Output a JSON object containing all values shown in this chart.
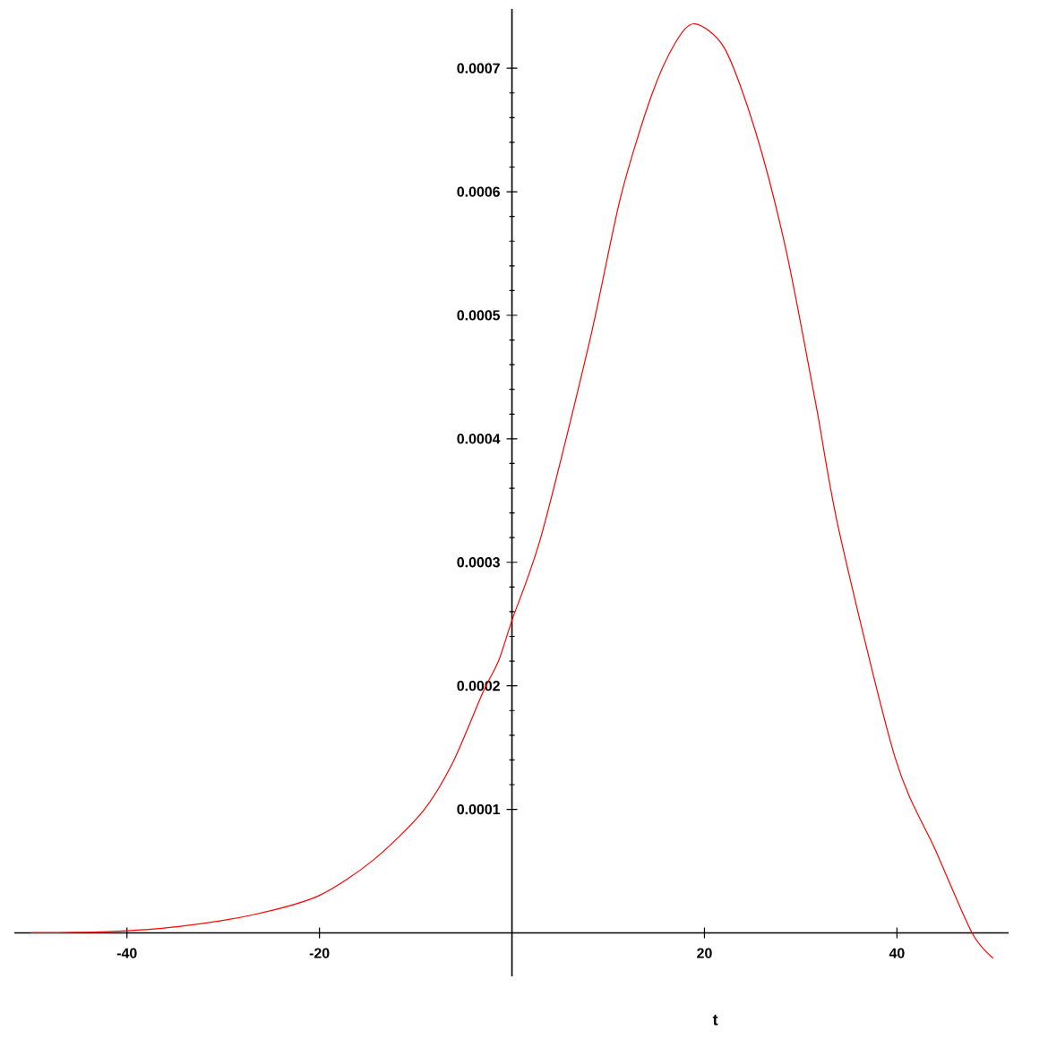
{
  "chart_data": {
    "type": "line",
    "xlabel": "t",
    "x": [
      -50,
      -42,
      -34.8,
      -27,
      -20.1,
      -14.4,
      -9.3,
      -6.2,
      -3.0,
      -1.4,
      0,
      3.1,
      8.1,
      11.3,
      14.5,
      17.0,
      19.0,
      22.1,
      25.3,
      28.5,
      31.6,
      34.0,
      39.8,
      44,
      47.8,
      50
    ],
    "values": [
      0,
      1e-06,
      5e-06,
      1.45e-05,
      3e-05,
      5.9e-05,
      9.8e-05,
      0.000137,
      0.000195,
      0.00022,
      0.000253,
      0.000323,
      0.00048,
      0.000596,
      0.000678,
      0.000721,
      0.000736,
      0.000716,
      0.000649,
      0.000552,
      0.000427,
      0.000325,
      0.000142,
      6.7e-05,
      0,
      -2.05e-05
    ],
    "color": "#ff0000",
    "xlim": [
      -51.7,
      51.6
    ],
    "ylim": [
      -3.52e-05,
      0.000748
    ],
    "xticks": [
      -40,
      -20,
      20,
      40
    ],
    "yticks": [
      0.0001,
      0.0002,
      0.0003,
      0.0004,
      0.0005,
      0.0006,
      0.0007
    ]
  }
}
